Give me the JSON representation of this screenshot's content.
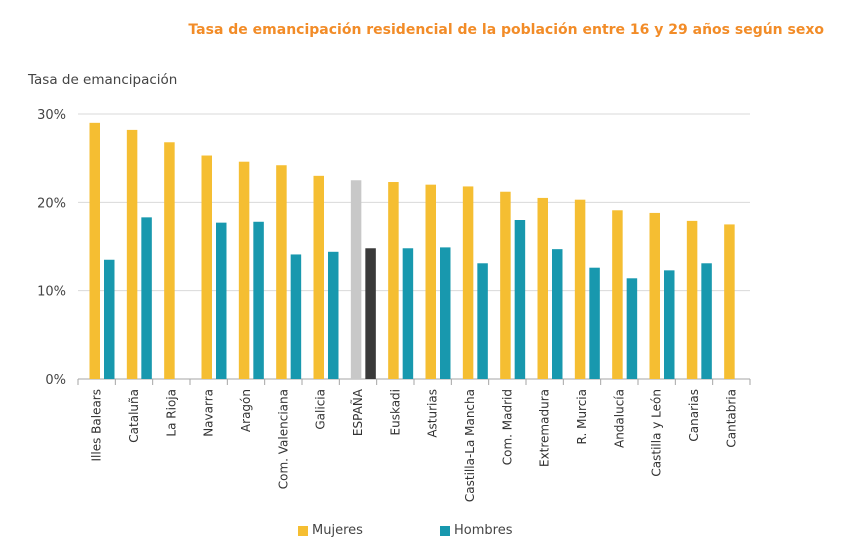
{
  "chart_data": {
    "type": "bar",
    "title": "Tasa de emancipación residencial de la población entre 16 y 29 años  según sexo",
    "ylabel": "Tasa de emancipación",
    "xlabel": "",
    "ylim": [
      0,
      30
    ],
    "yticks": [
      "0%",
      "10%",
      "20%",
      "30%"
    ],
    "grid": true,
    "legend_position": "bottom",
    "categories": [
      "Illes Balears",
      "Cataluña",
      "La Rioja",
      "Navarra",
      "Aragón",
      "Com. Valenciana",
      "Galicia",
      "ESPAÑA",
      "Euskadi",
      "Asturias",
      "Castilla-La Mancha",
      "Com. Madrid",
      "Extremadura",
      "R. Murcia",
      "Andalucía",
      "Castilla y León",
      "Canarias",
      "Cantabria"
    ],
    "series": [
      {
        "name": "Mujeres",
        "color": "#F5BE32",
        "highlight_color": "#C8C8C8",
        "values": [
          29.0,
          28.2,
          26.8,
          25.3,
          24.6,
          24.2,
          23.0,
          22.5,
          22.3,
          22.0,
          21.8,
          21.2,
          20.5,
          20.3,
          19.1,
          18.8,
          17.9,
          17.5
        ]
      },
      {
        "name": "Hombres",
        "color": "#1898AE",
        "highlight_color": "#3A3A3A",
        "values": [
          13.5,
          18.3,
          null,
          17.7,
          17.8,
          14.1,
          14.4,
          14.8,
          14.8,
          14.9,
          13.1,
          18.0,
          14.7,
          12.6,
          11.4,
          12.3,
          13.1,
          null
        ]
      }
    ],
    "highlight_category": "ESPAÑA"
  }
}
